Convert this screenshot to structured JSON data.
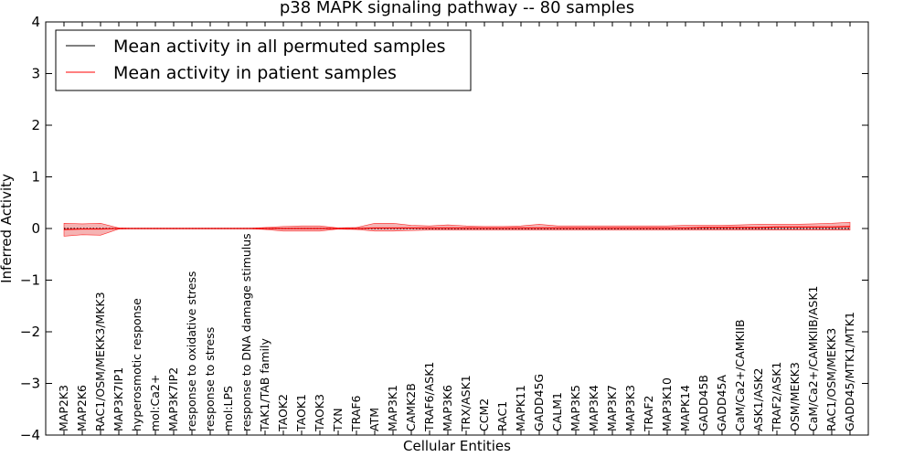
{
  "chart_data": {
    "type": "line",
    "title": "p38 MAPK signaling pathway -- 80 samples",
    "xlabel": "Cellular Entities",
    "ylabel": "Inferred Activity",
    "ylim": [
      -4,
      4
    ],
    "yticks": [
      "4",
      "3",
      "2",
      "1",
      "0",
      "−1",
      "−2",
      "−3",
      "−4"
    ],
    "grid": false,
    "legend_position": "top-left",
    "categories": [
      "MAP2K3",
      "MAP2K6",
      "RAC1/OSM/MEKK3/MKK3",
      "MAP3K7IP1",
      "hyperosmotic response",
      "mol:Ca2+",
      "MAP3K7IP2",
      "response to oxidative stress",
      "response to stress",
      "mol:LPS",
      "response to DNA damage stimulus",
      "TAK1/TAB family",
      "TAOK2",
      "TAOK1",
      "TAOK3",
      "TXN",
      "TRAF6",
      "ATM",
      "MAP3K1",
      "CAMK2B",
      "TRAF6/ASK1",
      "MAP3K6",
      "TRX/ASK1",
      "CCM2",
      "RAC1",
      "MAPK11",
      "GADD45G",
      "CALM1",
      "MAP3K5",
      "MAP3K4",
      "MAP3K7",
      "MAP3K3",
      "TRAF2",
      "MAP3K10",
      "MAPK14",
      "GADD45B",
      "GADD45A",
      "CaM/Ca2+/CAMKIIB",
      "ASK1/ASK2",
      "TRAF2/ASK1",
      "OSM/MEKK3",
      "CaM/Ca2+/CAMKIIB/ASK1",
      "RAC1/OSM/MEKK3",
      "GADD45/MTK1/MTK1"
    ],
    "series": [
      {
        "name": "Mean activity in all permuted samples",
        "color": "#000000",
        "style": "dotted",
        "values": [
          0,
          0,
          0,
          0,
          0,
          0,
          0,
          0,
          0,
          0,
          0,
          0,
          0,
          0,
          0,
          0,
          0,
          0,
          0,
          0,
          0,
          0,
          0,
          0,
          0,
          0,
          0,
          0,
          0,
          0,
          0,
          0,
          0,
          0,
          0,
          0,
          0,
          0,
          0,
          0,
          0,
          0,
          0,
          0
        ]
      },
      {
        "name": "Mean activity in patient samples",
        "color": "#ff0000",
        "style": "solid",
        "values": [
          -0.02,
          -0.01,
          -0.01,
          0,
          0,
          0,
          0,
          0,
          0,
          0,
          0,
          0,
          0,
          0,
          0,
          0,
          0,
          0.01,
          0.01,
          0.01,
          0.01,
          0.01,
          0.01,
          0.01,
          0.01,
          0.01,
          0.01,
          0.01,
          0.01,
          0.01,
          0.01,
          0.01,
          0.01,
          0.01,
          0.01,
          0.02,
          0.02,
          0.02,
          0.02,
          0.03,
          0.03,
          0.03,
          0.03,
          0.04
        ],
        "band_upper": [
          0.1,
          0.09,
          0.1,
          0.01,
          0,
          0,
          0,
          0,
          0,
          0,
          0,
          0.02,
          0.04,
          0.05,
          0.05,
          0.01,
          0.02,
          0.1,
          0.1,
          0.06,
          0.05,
          0.07,
          0.05,
          0.04,
          0.04,
          0.05,
          0.08,
          0.05,
          0.05,
          0.05,
          0.05,
          0.05,
          0.05,
          0.05,
          0.06,
          0.06,
          0.06,
          0.07,
          0.08,
          0.08,
          0.08,
          0.09,
          0.1,
          0.12
        ],
        "band_lower": [
          -0.15,
          -0.12,
          -0.13,
          -0.01,
          0,
          0,
          0,
          0,
          0,
          0,
          0,
          -0.02,
          -0.05,
          -0.05,
          -0.05,
          -0.01,
          -0.02,
          -0.05,
          -0.05,
          -0.04,
          -0.03,
          -0.03,
          -0.03,
          -0.03,
          -0.03,
          -0.03,
          -0.03,
          -0.03,
          -0.03,
          -0.03,
          -0.03,
          -0.03,
          -0.03,
          -0.03,
          -0.03,
          -0.03,
          -0.03,
          -0.03,
          -0.03,
          -0.03,
          -0.03,
          -0.03,
          -0.03,
          -0.03
        ]
      }
    ],
    "permuted_band_color": "#bbbbbb",
    "patient_band_color": "#ee8080"
  }
}
